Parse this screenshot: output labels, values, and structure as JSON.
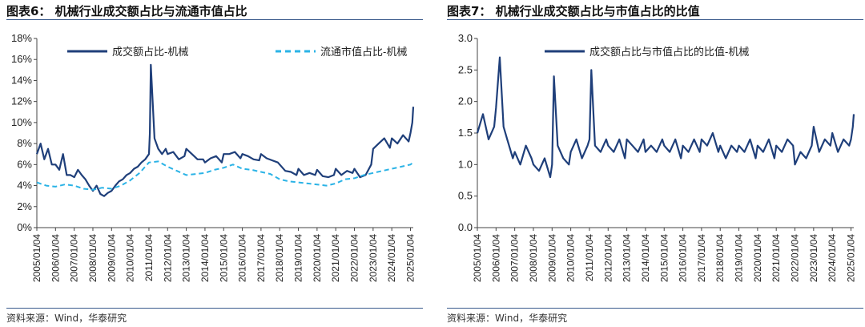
{
  "left_panel": {
    "title": "图表6：  机械行业成交额占比与流通市值占比",
    "source": "资料来源：Wind，华泰研究"
  },
  "right_panel": {
    "title": "图表7：  机械行业成交额占比与市值占比的比值",
    "source": "资料来源：Wind，华泰研究"
  },
  "colors": {
    "dark_series": "#1f3f7a",
    "light_series": "#2bb3e6",
    "rule": "#3a5a8c"
  },
  "chart_data": [
    {
      "type": "line",
      "ylim": [
        0,
        18
      ],
      "y_ticks": [
        "0%",
        "2%",
        "4%",
        "6%",
        "8%",
        "10%",
        "12%",
        "14%",
        "16%",
        "18%"
      ],
      "x_ticks": [
        "2005/01/04",
        "2006/01/04",
        "2007/01/04",
        "2008/01/04",
        "2009/01/04",
        "2010/01/04",
        "2011/01/04",
        "2012/01/04",
        "2013/01/04",
        "2014/01/04",
        "2015/01/04",
        "2016/01/04",
        "2017/01/04",
        "2018/01/04",
        "2019/01/04",
        "2020/01/04",
        "2021/01/04",
        "2022/01/04",
        "2023/01/04",
        "2024/01/04",
        "2025/01/04"
      ],
      "legend_placement": "top",
      "series": [
        {
          "name": "成交额占比-机械",
          "style": "solid",
          "x": [
            2005.0,
            2005.2,
            2005.4,
            2005.6,
            2005.8,
            2006.0,
            2006.2,
            2006.4,
            2006.6,
            2006.8,
            2007.0,
            2007.2,
            2007.4,
            2007.6,
            2007.8,
            2008.0,
            2008.2,
            2008.4,
            2008.6,
            2008.8,
            2009.0,
            2009.2,
            2009.4,
            2009.6,
            2009.8,
            2010.0,
            2010.2,
            2010.4,
            2010.6,
            2010.8,
            2011.0,
            2011.05,
            2011.1,
            2011.3,
            2011.5,
            2011.7,
            2011.9,
            2012.0,
            2012.3,
            2012.6,
            2012.9,
            2013.0,
            2013.3,
            2013.6,
            2013.9,
            2014.0,
            2014.3,
            2014.6,
            2014.9,
            2015.0,
            2015.3,
            2015.6,
            2015.9,
            2016.0,
            2016.3,
            2016.6,
            2016.9,
            2017.0,
            2017.3,
            2017.6,
            2017.9,
            2018.0,
            2018.3,
            2018.6,
            2018.9,
            2019.0,
            2019.3,
            2019.6,
            2019.9,
            2020.0,
            2020.3,
            2020.6,
            2020.9,
            2021.0,
            2021.3,
            2021.6,
            2021.9,
            2022.0,
            2022.3,
            2022.6,
            2022.9,
            2023.0,
            2023.3,
            2023.6,
            2023.9,
            2024.0,
            2024.3,
            2024.6,
            2024.9,
            2025.0,
            2025.1,
            2025.15
          ],
          "y": [
            7.0,
            8.0,
            6.5,
            7.5,
            6.0,
            6.0,
            5.5,
            7.0,
            5.0,
            5.0,
            4.8,
            5.5,
            5.0,
            4.6,
            4.0,
            3.5,
            4.0,
            3.2,
            3.0,
            3.3,
            3.5,
            4.0,
            4.4,
            4.6,
            5.0,
            5.2,
            5.6,
            5.8,
            6.2,
            6.5,
            7.0,
            9.0,
            15.5,
            8.5,
            7.5,
            7.0,
            7.5,
            7.0,
            7.2,
            6.5,
            6.8,
            7.5,
            7.0,
            6.5,
            6.5,
            6.2,
            6.6,
            6.8,
            6.2,
            7.0,
            7.0,
            7.2,
            6.6,
            7.0,
            6.8,
            6.5,
            6.4,
            7.0,
            6.6,
            6.4,
            6.2,
            6.0,
            5.4,
            5.3,
            5.0,
            5.6,
            5.0,
            5.2,
            5.0,
            5.5,
            4.9,
            4.8,
            5.0,
            5.6,
            5.0,
            5.4,
            5.2,
            5.6,
            4.8,
            5.0,
            6.0,
            7.5,
            8.0,
            8.5,
            7.6,
            8.5,
            8.0,
            8.8,
            8.2,
            9.0,
            10.0,
            11.5
          ]
        },
        {
          "name": "流通市值占比-机械",
          "style": "dashed",
          "x": [
            2005.0,
            2005.5,
            2006.0,
            2006.5,
            2007.0,
            2007.5,
            2008.0,
            2008.5,
            2009.0,
            2009.5,
            2010.0,
            2010.5,
            2011.0,
            2011.5,
            2012.0,
            2012.5,
            2013.0,
            2013.5,
            2014.0,
            2014.5,
            2015.0,
            2015.5,
            2016.0,
            2016.5,
            2017.0,
            2017.5,
            2018.0,
            2018.5,
            2019.0,
            2019.5,
            2020.0,
            2020.5,
            2021.0,
            2021.5,
            2022.0,
            2022.5,
            2023.0,
            2023.5,
            2024.0,
            2024.5,
            2025.0,
            2025.15
          ],
          "y": [
            4.3,
            4.0,
            3.9,
            4.1,
            4.0,
            3.7,
            3.6,
            3.8,
            3.7,
            4.0,
            4.5,
            5.2,
            6.2,
            6.3,
            5.8,
            5.4,
            5.0,
            5.1,
            5.2,
            5.5,
            5.7,
            6.0,
            5.6,
            5.5,
            5.3,
            5.1,
            4.6,
            4.4,
            4.3,
            4.2,
            4.1,
            4.0,
            4.2,
            4.6,
            4.7,
            5.0,
            5.2,
            5.4,
            5.6,
            5.8,
            6.0,
            6.2
          ]
        }
      ]
    },
    {
      "type": "line",
      "ylim": [
        0,
        3.0
      ],
      "y_ticks": [
        "0.0",
        "0.5",
        "1.0",
        "1.5",
        "2.0",
        "2.5",
        "3.0"
      ],
      "x_ticks": [
        "2005/01/04",
        "2006/01/04",
        "2007/01/04",
        "2008/01/04",
        "2009/01/04",
        "2010/01/04",
        "2011/01/04",
        "2012/01/04",
        "2013/01/04",
        "2014/01/04",
        "2015/01/04",
        "2016/01/04",
        "2017/01/04",
        "2018/01/04",
        "2019/01/04",
        "2020/01/04",
        "2021/01/04",
        "2022/01/04",
        "2023/01/04",
        "2024/01/04",
        "2025/01/04"
      ],
      "legend_placement": "top",
      "series": [
        {
          "name": "成交额占比与市值占比的比值-机械",
          "style": "solid",
          "x": [
            2005.0,
            2005.3,
            2005.6,
            2005.9,
            2006.0,
            2006.2,
            2006.4,
            2006.6,
            2006.9,
            2007.0,
            2007.3,
            2007.6,
            2007.9,
            2008.0,
            2008.3,
            2008.6,
            2008.9,
            2009.0,
            2009.1,
            2009.3,
            2009.6,
            2009.9,
            2010.0,
            2010.3,
            2010.6,
            2010.9,
            2011.0,
            2011.1,
            2011.3,
            2011.6,
            2011.9,
            2012.0,
            2012.3,
            2012.6,
            2012.9,
            2013.0,
            2013.3,
            2013.6,
            2013.9,
            2014.0,
            2014.3,
            2014.6,
            2014.9,
            2015.0,
            2015.3,
            2015.6,
            2015.9,
            2016.0,
            2016.3,
            2016.6,
            2016.9,
            2017.0,
            2017.3,
            2017.6,
            2017.9,
            2018.0,
            2018.3,
            2018.6,
            2018.9,
            2019.0,
            2019.3,
            2019.6,
            2019.9,
            2020.0,
            2020.3,
            2020.6,
            2020.9,
            2021.0,
            2021.3,
            2021.6,
            2021.9,
            2022.0,
            2022.3,
            2022.6,
            2022.9,
            2023.0,
            2023.3,
            2023.6,
            2023.9,
            2024.0,
            2024.3,
            2024.6,
            2024.9,
            2025.0,
            2025.1,
            2025.15
          ],
          "y": [
            1.5,
            1.8,
            1.4,
            1.6,
            1.9,
            2.7,
            1.6,
            1.4,
            1.1,
            1.2,
            1.0,
            1.3,
            1.1,
            1.0,
            0.9,
            1.1,
            0.8,
            1.0,
            2.4,
            1.3,
            1.1,
            1.0,
            1.2,
            1.4,
            1.1,
            1.3,
            1.4,
            2.5,
            1.3,
            1.2,
            1.4,
            1.3,
            1.2,
            1.4,
            1.1,
            1.4,
            1.3,
            1.2,
            1.4,
            1.2,
            1.3,
            1.2,
            1.4,
            1.3,
            1.2,
            1.4,
            1.1,
            1.3,
            1.2,
            1.4,
            1.2,
            1.4,
            1.3,
            1.5,
            1.2,
            1.3,
            1.1,
            1.3,
            1.2,
            1.3,
            1.2,
            1.4,
            1.1,
            1.3,
            1.2,
            1.4,
            1.1,
            1.3,
            1.2,
            1.4,
            1.3,
            1.0,
            1.2,
            1.1,
            1.3,
            1.6,
            1.2,
            1.4,
            1.3,
            1.5,
            1.2,
            1.4,
            1.3,
            1.4,
            1.6,
            1.8
          ]
        }
      ]
    }
  ]
}
